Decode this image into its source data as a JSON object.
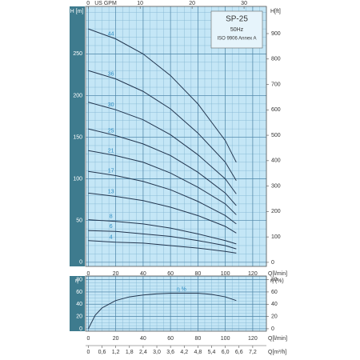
{
  "chart_data": [
    {
      "type": "line",
      "title": "SP-25",
      "subtitle": "50Hz",
      "note": "ISO 9906 Annex A",
      "y_label": "H [m]",
      "y2_label": "H[ft]",
      "x_label": "Q[l/min]",
      "x2_label": "US GPM",
      "x": [
        0,
        20,
        40,
        60,
        80,
        100,
        108
      ],
      "xlim": [
        -2,
        130
      ],
      "xticks": [
        0,
        20,
        40,
        60,
        80,
        100,
        120
      ],
      "x2lim": [
        -0.5,
        34.3
      ],
      "x2ticks": [
        0,
        10,
        20,
        30
      ],
      "ylim": [
        -5,
        307
      ],
      "yticks": [
        0,
        50,
        100,
        150,
        200,
        250
      ],
      "y2lim": [
        -16,
        1007
      ],
      "y2ticks": [
        0,
        100,
        200,
        300,
        400,
        500,
        600,
        700,
        800,
        900
      ],
      "grid": true,
      "series": [
        {
          "name": "44",
          "color": "#23364f",
          "values": [
            280,
            268,
            250,
            224,
            190,
            146,
            120
          ]
        },
        {
          "name": "36",
          "color": "#23364f",
          "values": [
            230,
            220,
            205,
            184,
            155,
            120,
            98
          ]
        },
        {
          "name": "30",
          "color": "#23364f",
          "values": [
            192,
            183,
            171,
            153,
            129,
            100,
            82
          ]
        },
        {
          "name": "25",
          "color": "#23364f",
          "values": [
            160,
            152,
            142,
            128,
            108,
            83,
            68
          ]
        },
        {
          "name": "21",
          "color": "#23364f",
          "values": [
            134,
            128,
            120,
            107,
            90,
            70,
            57
          ]
        },
        {
          "name": "17",
          "color": "#23364f",
          "values": [
            109,
            104,
            97,
            87,
            73,
            56,
            46
          ]
        },
        {
          "name": "13",
          "color": "#23364f",
          "values": [
            83,
            79,
            74,
            66,
            56,
            43,
            35
          ]
        },
        {
          "name": "8",
          "color": "#23364f",
          "values": [
            51,
            49,
            46,
            41,
            34,
            26,
            22
          ]
        },
        {
          "name": "6",
          "color": "#23364f",
          "values": [
            38,
            37,
            34,
            31,
            26,
            20,
            16
          ]
        },
        {
          "name": "4",
          "color": "#23364f",
          "values": [
            26,
            24,
            23,
            20,
            17,
            13,
            11
          ]
        }
      ]
    },
    {
      "type": "line",
      "y_label": "η",
      "y2_label": "η (%)",
      "x_label": "Q[l/min]",
      "x3_label": "Q[m³/h]",
      "annotation": "η %",
      "x": [
        0,
        5,
        10,
        20,
        30,
        40,
        50,
        60,
        70,
        80,
        90,
        100,
        108
      ],
      "series": [
        {
          "name": "η %",
          "color": "#23364f",
          "values": [
            0,
            22,
            34,
            46,
            52,
            55,
            57,
            58,
            58,
            58,
            56,
            52,
            46
          ]
        }
      ],
      "xlim": [
        -2,
        130
      ],
      "xticks": [
        0,
        20,
        40,
        60,
        80,
        100,
        120
      ],
      "x3lim": [
        -0.12,
        7.8
      ],
      "x3ticks": [
        0,
        {
          "value": 0.6,
          "label": "0,6"
        },
        {
          "value": 1.2,
          "label": "1,2"
        },
        {
          "value": 1.8,
          "label": "1,8"
        },
        {
          "value": 2.4,
          "label": "2,4"
        },
        {
          "value": 3.0,
          "label": "3,0"
        },
        {
          "value": 3.6,
          "label": "3,6"
        },
        {
          "value": 4.2,
          "label": "4,2"
        },
        {
          "value": 4.8,
          "label": "4,8"
        },
        {
          "value": 5.4,
          "label": "5,4"
        },
        {
          "value": 6.0,
          "label": "6,0"
        },
        {
          "value": 6.6,
          "label": "6,6"
        },
        {
          "value": 7.2,
          "label": "7,2"
        }
      ],
      "ylim": [
        -4,
        86
      ],
      "yticks": [
        0,
        20,
        40,
        60,
        80
      ],
      "y2lim": [
        -4,
        86
      ],
      "y2ticks": [
        0,
        20,
        40,
        60,
        80
      ],
      "grid": true
    }
  ]
}
